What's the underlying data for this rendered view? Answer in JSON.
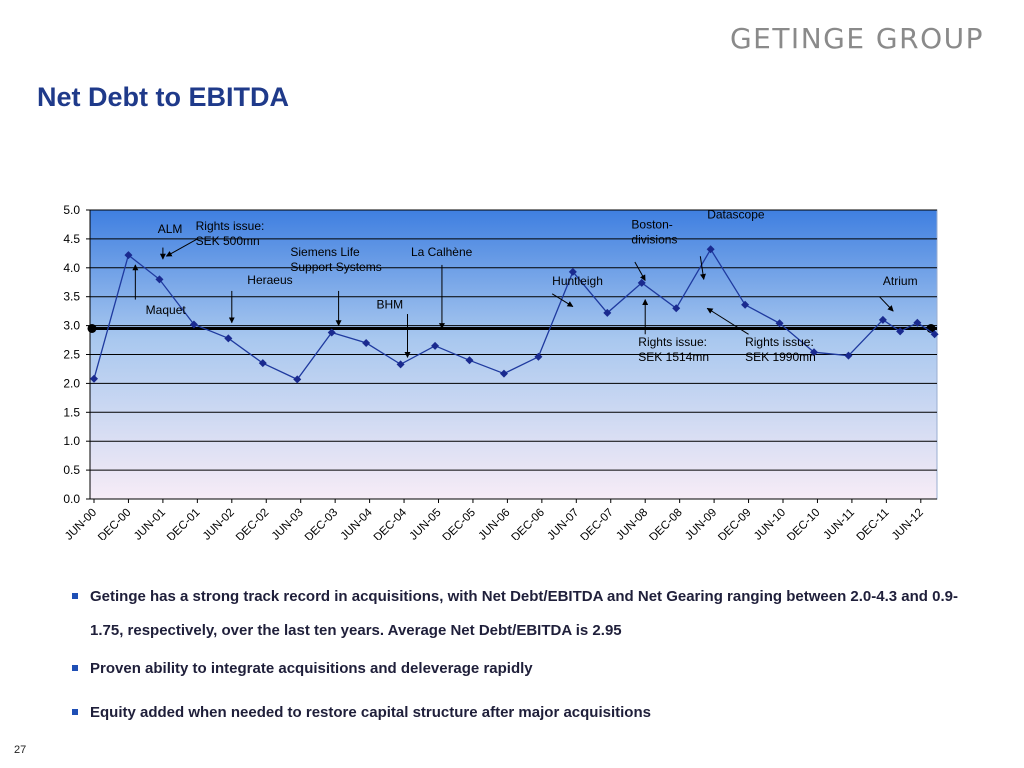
{
  "brand": {
    "logo_text": "GETINGE GROUP"
  },
  "slide": {
    "title": "Net Debt to EBITDA",
    "page_number": "27"
  },
  "bullets": [
    "Getinge has a strong track record in acquisitions, with Net Debt/EBITDA and Net Gearing ranging between 2.0-4.3 and 0.9-1.75, respectively, over the last ten years. Average Net Debt/EBITDA is 2.95",
    "Proven ability to integrate acquisitions and deleverage rapidly",
    "Equity added when needed to restore capital structure after major acquisitions"
  ],
  "chart_data": {
    "type": "line",
    "categories": [
      "JUN-00",
      "DEC-00",
      "JUN-01",
      "DEC-01",
      "JUN-02",
      "DEC-02",
      "JUN-03",
      "DEC-03",
      "JUN-04",
      "DEC-04",
      "JUN-05",
      "DEC-05",
      "JUN-06",
      "DEC-06",
      "JUN-07",
      "DEC-07",
      "JUN-08",
      "DEC-08",
      "JUN-09",
      "DEC-09",
      "JUN-10",
      "DEC-10",
      "JUN-11",
      "DEC-11",
      "JUN-12"
    ],
    "x": [
      0,
      1,
      1.9,
      2.9,
      3.9,
      4.9,
      5.9,
      6.9,
      7.9,
      8.9,
      9.9,
      10.9,
      11.9,
      12.9,
      13.9,
      14.9,
      15.9,
      16.9,
      17.9,
      18.9,
      19.9,
      20.9,
      21.9,
      22.9,
      23.4,
      23.9,
      24.4
    ],
    "series": [
      {
        "values": [
          2.08,
          4.22,
          3.8,
          3.02,
          2.78,
          2.35,
          2.07,
          2.88,
          2.7,
          2.33,
          2.65,
          2.4,
          2.17,
          2.46,
          3.93,
          3.22,
          3.74,
          3.3,
          4.32,
          3.36,
          3.04,
          2.54,
          2.48,
          3.1,
          2.9,
          3.05,
          2.85
        ]
      }
    ],
    "average_line": 2.95,
    "ylim": [
      0,
      5
    ],
    "yticks": [
      "5.0",
      "4.5",
      "4.0",
      "3.5",
      "3.0",
      "2.5",
      "2.0",
      "1.5",
      "1.0",
      "0.5",
      "0.0"
    ],
    "grid": true,
    "colors": {
      "line": "#1f3a9f",
      "marker": "#1a2a8f",
      "average": "#000000",
      "bg_top": "#3f7fe0",
      "bg_bottom": "#f7ecf6"
    },
    "annotations": [
      {
        "lines": [
          "ALM"
        ],
        "x": 1.85,
        "y": 4.6
      },
      {
        "lines": [
          "Rights issue:",
          "SEK 500mn"
        ],
        "x": 2.95,
        "y": 4.65
      },
      {
        "lines": [
          "Maquet"
        ],
        "x": 1.5,
        "y": 3.2
      },
      {
        "lines": [
          "Heraeus"
        ],
        "x": 4.45,
        "y": 3.72
      },
      {
        "lines": [
          "Siemens Life",
          "Support Systems"
        ],
        "x": 5.7,
        "y": 4.2
      },
      {
        "lines": [
          "La Calhène"
        ],
        "x": 9.2,
        "y": 4.2
      },
      {
        "lines": [
          "BHM"
        ],
        "x": 8.2,
        "y": 3.3
      },
      {
        "lines": [
          "Huntleigh"
        ],
        "x": 13.3,
        "y": 3.7
      },
      {
        "lines": [
          "Boston-",
          "divisions"
        ],
        "x": 15.6,
        "y": 4.68
      },
      {
        "lines": [
          "Datascope"
        ],
        "x": 17.8,
        "y": 4.85
      },
      {
        "lines": [
          "Rights issue:",
          "SEK 1514mn"
        ],
        "x": 15.8,
        "y": 2.65
      },
      {
        "lines": [
          "Rights issue:",
          "SEK 1990mn"
        ],
        "x": 18.9,
        "y": 2.65
      },
      {
        "lines": [
          "Atrium"
        ],
        "x": 22.9,
        "y": 3.7
      }
    ]
  }
}
